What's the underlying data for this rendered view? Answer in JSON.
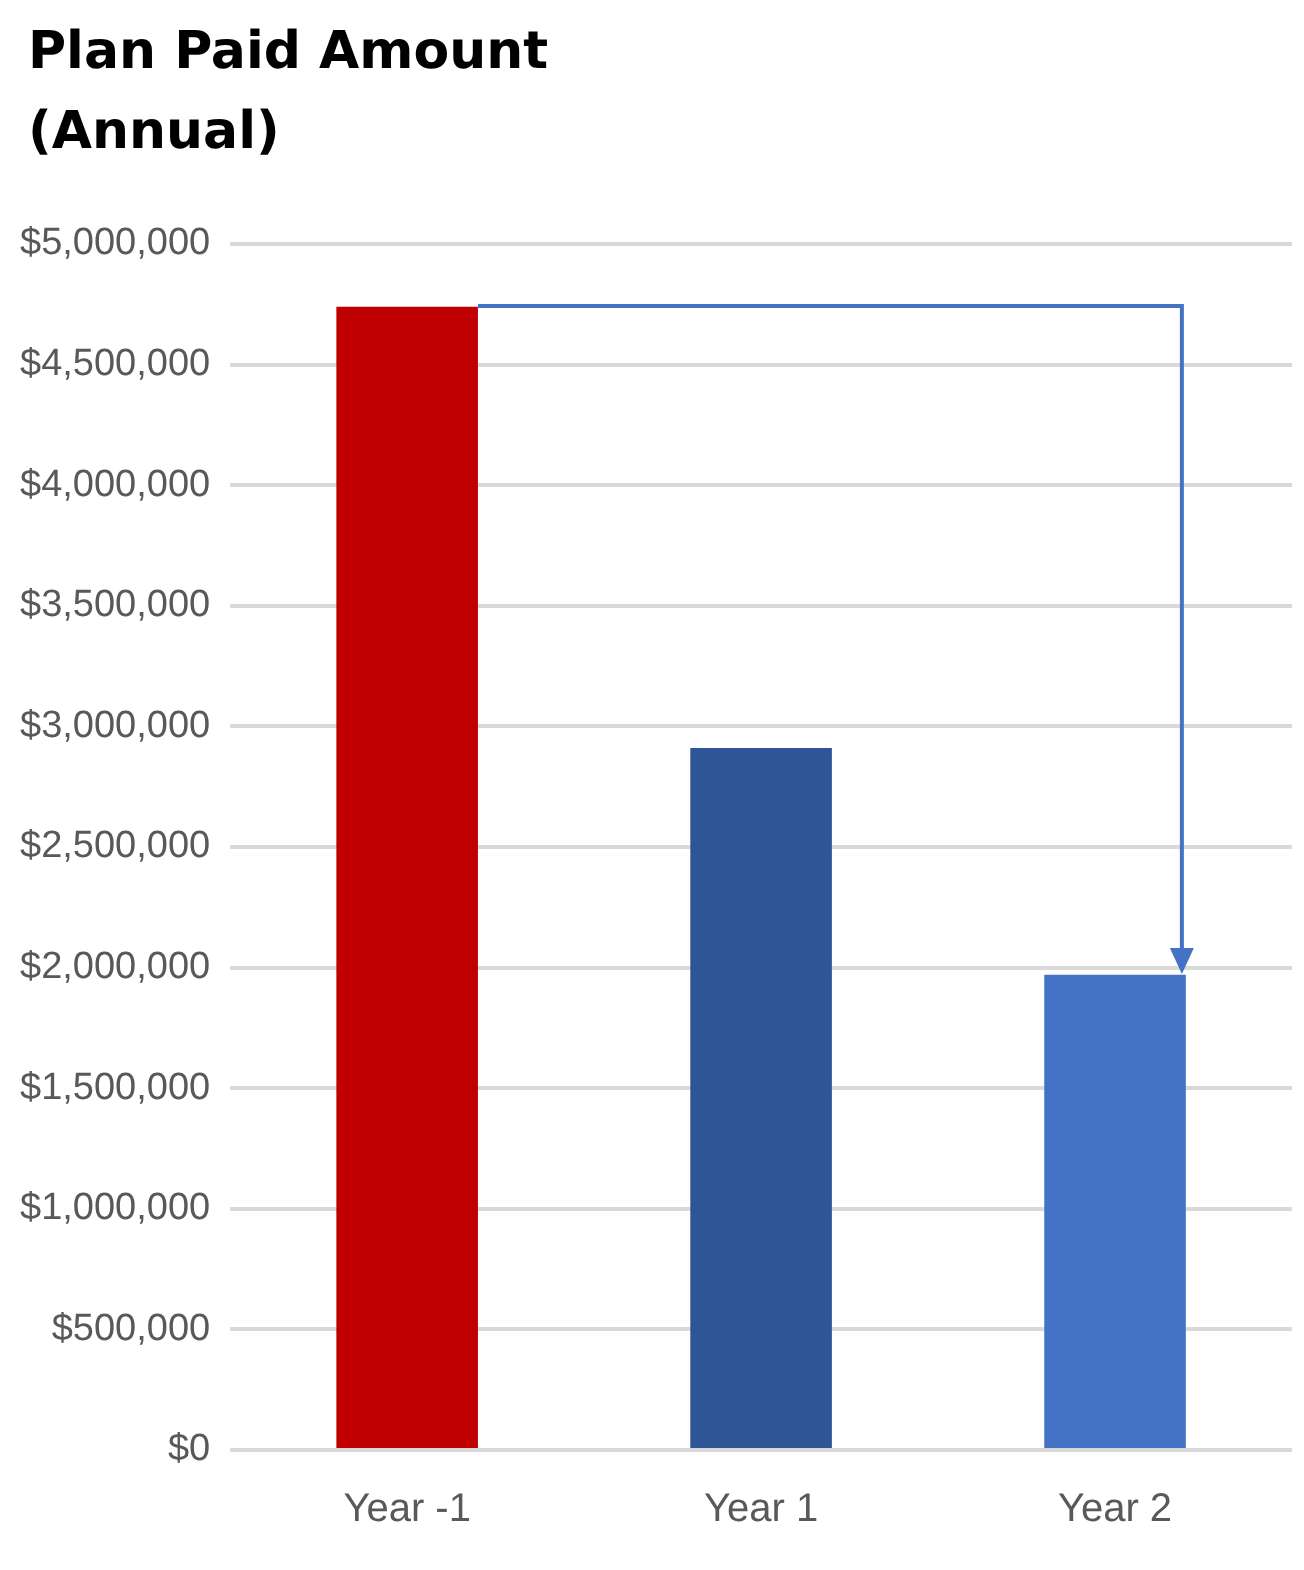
{
  "chart_data": {
    "type": "bar",
    "title": "Plan Paid Amount (Annual)",
    "categories": [
      "Year -1",
      "Year 1",
      "Year 2"
    ],
    "values": [
      4740000,
      2910000,
      1970000
    ],
    "colors": [
      "#c00000",
      "#2f5597",
      "#4472c4"
    ],
    "ylim": [
      0,
      5000000
    ],
    "yticks": [
      {
        "value": 0,
        "label": "$0"
      },
      {
        "value": 500000,
        "label": "$500,000"
      },
      {
        "value": 1000000,
        "label": "$1,000,000"
      },
      {
        "value": 1500000,
        "label": "$1,500,000"
      },
      {
        "value": 2000000,
        "label": "$2,000,000"
      },
      {
        "value": 2500000,
        "label": "$2,500,000"
      },
      {
        "value": 3000000,
        "label": "$3,000,000"
      },
      {
        "value": 3500000,
        "label": "$3,500,000"
      },
      {
        "value": 4000000,
        "label": "$4,000,000"
      },
      {
        "value": 4500000,
        "label": "$4,500,000"
      },
      {
        "value": 5000000,
        "label": "$5,000,000"
      }
    ],
    "grid": "y",
    "legend": false
  }
}
